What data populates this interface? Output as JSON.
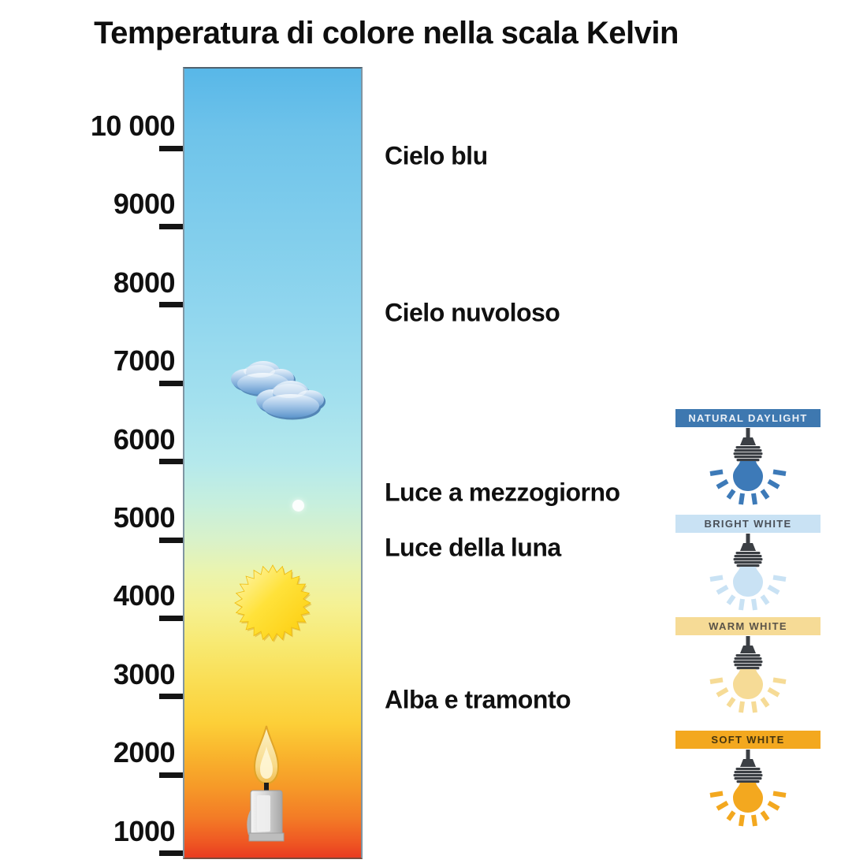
{
  "title": "Temperatura di colore nella scala Kelvin",
  "scale": {
    "unit": "Kelvin",
    "ticks": [
      {
        "label": "10 000",
        "kelvin": 10000
      },
      {
        "label": "9000",
        "kelvin": 9000
      },
      {
        "label": "8000",
        "kelvin": 8000
      },
      {
        "label": "7000",
        "kelvin": 7000
      },
      {
        "label": "6000",
        "kelvin": 6000
      },
      {
        "label": "5000",
        "kelvin": 5000
      },
      {
        "label": "4000",
        "kelvin": 4000
      },
      {
        "label": "3000",
        "kelvin": 3000
      },
      {
        "label": "2000",
        "kelvin": 2000
      },
      {
        "label": "1000",
        "kelvin": 1000
      }
    ],
    "gradient_stops": [
      "#58b7e8 0%",
      "#6ec3ea 8%",
      "#80cdec 20%",
      "#92d7ee 32%",
      "#a3e0ee 42%",
      "#b5e9ec 50%",
      "#c6efde 55%",
      "#daf2c8 60%",
      "#ebf4ad 64%",
      "#f5f194 68%",
      "#f8e971 73%",
      "#fadd52 78%",
      "#fccf38 83%",
      "#f9b42d 87%",
      "#f69a28 91%",
      "#f37b26 95%",
      "#ef5823 98%",
      "#e93c20 100%"
    ]
  },
  "annotations": [
    {
      "text": "Cielo blu",
      "kelvin": 9900
    },
    {
      "text": "Cielo nuvoloso",
      "kelvin": 7900
    },
    {
      "text": "Luce a mezzogiorno",
      "kelvin": 5600
    },
    {
      "text": "Luce della luna",
      "kelvin": 4900
    },
    {
      "text": "Alba e tramonto",
      "kelvin": 2960
    }
  ],
  "bar_icons": [
    {
      "name": "clouds-icon",
      "kelvin": 6900
    },
    {
      "name": "moon-icon",
      "kelvin": 5450
    },
    {
      "name": "sun-icon",
      "kelvin": 4250
    },
    {
      "name": "candle-icon",
      "kelvin": 1700
    }
  ],
  "bulb_panels": [
    {
      "label": "NATURAL DAYLIGHT",
      "header_bg": "#3e78b0",
      "header_text_color": "#e9eff6",
      "bulb_color": "#3d7ab8"
    },
    {
      "label": "BRIGHT WHITE",
      "header_bg": "#c9e2f4",
      "header_text_color": "#4a5058",
      "bulb_color": "#c9e2f4"
    },
    {
      "label": "WARM WHITE",
      "header_bg": "#f6db96",
      "header_text_color": "#5a5348",
      "bulb_color": "#f6db96"
    },
    {
      "label": "SOFT WHITE",
      "header_bg": "#f3a81f",
      "header_text_color": "#46350f",
      "bulb_color": "#f3a81f"
    }
  ]
}
